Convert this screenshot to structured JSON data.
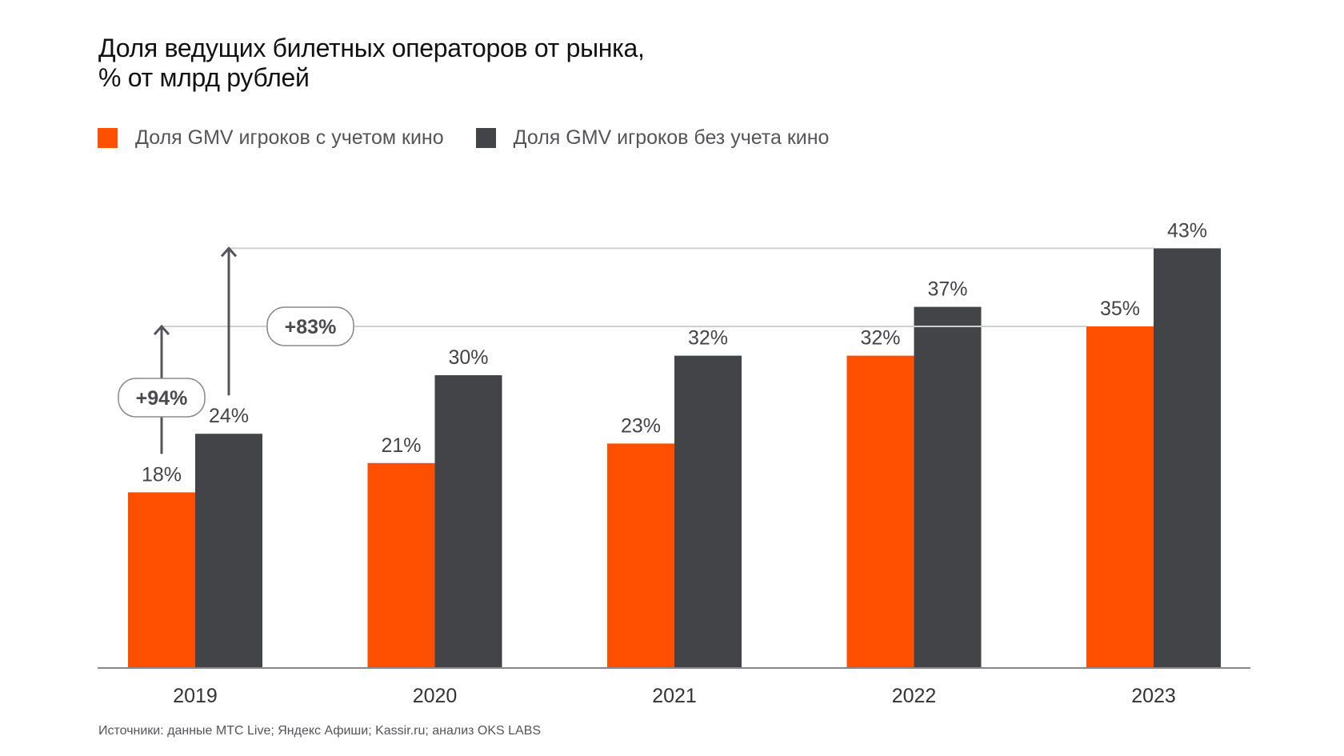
{
  "header": {
    "title_line1": "Доля ведущих билетных операторов от рынка,",
    "title_line2": "% от млрд рублей"
  },
  "legend": [
    {
      "label": "Доля GMV игроков с учетом кино",
      "color": "#FF4F00"
    },
    {
      "label": "Доля GMV игроков без учета кино",
      "color": "#434447"
    }
  ],
  "annotations": [
    {
      "label": "+94%",
      "from_series": 0,
      "from_category": "2019",
      "to_value": 35
    },
    {
      "label": "+83%",
      "from_series": 1,
      "from_category": "2019",
      "to_value": 43
    }
  ],
  "footer": {
    "source": "Источники: данные МТС Live; Яндекс Афиши; Kassir.ru; анализ OKS LABS"
  },
  "chart_data": {
    "type": "bar",
    "title": "Доля ведущих билетных операторов от рынка, % от млрд рублей",
    "xlabel": "",
    "ylabel": "",
    "categories": [
      "2019",
      "2020",
      "2021",
      "2022",
      "2023"
    ],
    "series": [
      {
        "name": "Доля GMV игроков с учетом кино",
        "color": "#FF4F00",
        "values": [
          18,
          21,
          23,
          32,
          35
        ],
        "labels": [
          "18%",
          "21%",
          "23%",
          "32%",
          "35%"
        ]
      },
      {
        "name": "Доля GMV игроков без учета кино",
        "color": "#434447",
        "values": [
          24,
          30,
          32,
          37,
          43
        ],
        "labels": [
          "24%",
          "30%",
          "32%",
          "37%",
          "43%"
        ]
      }
    ],
    "ylim": [
      0,
      45
    ],
    "grid": false,
    "legend_position": "top-left",
    "reference_lines": [
      35,
      43
    ],
    "growth_annotations": [
      "+94%",
      "+83%"
    ]
  }
}
